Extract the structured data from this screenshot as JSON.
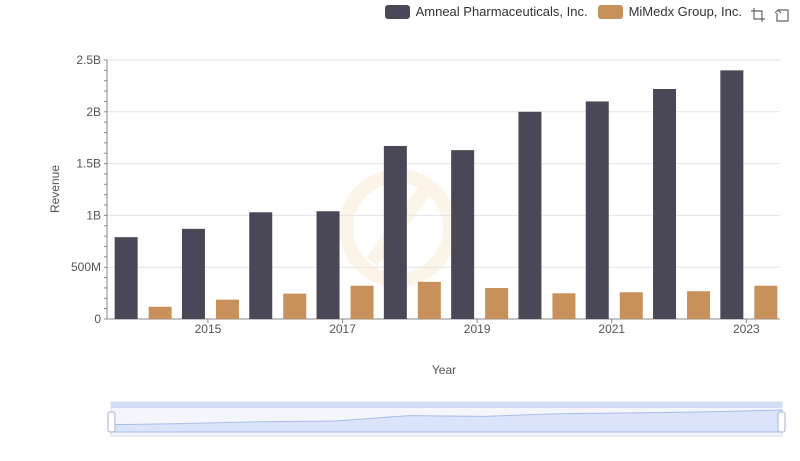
{
  "legend": {
    "series": [
      {
        "name": "Amneal Pharmaceuticals, Inc.",
        "color": "#4a4856"
      },
      {
        "name": "MiMedx Group, Inc.",
        "color": "#c8905a"
      }
    ]
  },
  "toolbox": {
    "zoom_icon": "zoom-icon",
    "restore_icon": "restore-icon"
  },
  "chart_data": {
    "type": "bar",
    "xlabel": "Year",
    "ylabel": "Revenue",
    "x_tick_labels": [
      "2015",
      "2017",
      "2019",
      "2021",
      "2023"
    ],
    "categories": [
      "2014",
      "2015",
      "2016",
      "2017",
      "2018",
      "2019",
      "2020",
      "2021",
      "2022",
      "2023"
    ],
    "ylim": [
      0,
      2500000000
    ],
    "y_ticks": [
      {
        "value": 0,
        "label": "0"
      },
      {
        "value": 500000000,
        "label": "500M"
      },
      {
        "value": 1000000000,
        "label": "1B"
      },
      {
        "value": 1500000000,
        "label": "1.5B"
      },
      {
        "value": 2000000000,
        "label": "2B"
      },
      {
        "value": 2500000000,
        "label": "2.5B"
      }
    ],
    "series": [
      {
        "name": "Amneal Pharmaceuticals, Inc.",
        "color": "#4a4856",
        "values": [
          790000000,
          870000000,
          1030000000,
          1040000000,
          1670000000,
          1630000000,
          2000000000,
          2100000000,
          2220000000,
          2400000000
        ]
      },
      {
        "name": "MiMedx Group, Inc.",
        "color": "#c8905a",
        "values": [
          118000000,
          187000000,
          245000000,
          321000000,
          359000000,
          299000000,
          248000000,
          258000000,
          268000000,
          321000000
        ]
      }
    ],
    "grid": true,
    "legend_position": "top-right",
    "data_zoom_slider": true
  }
}
